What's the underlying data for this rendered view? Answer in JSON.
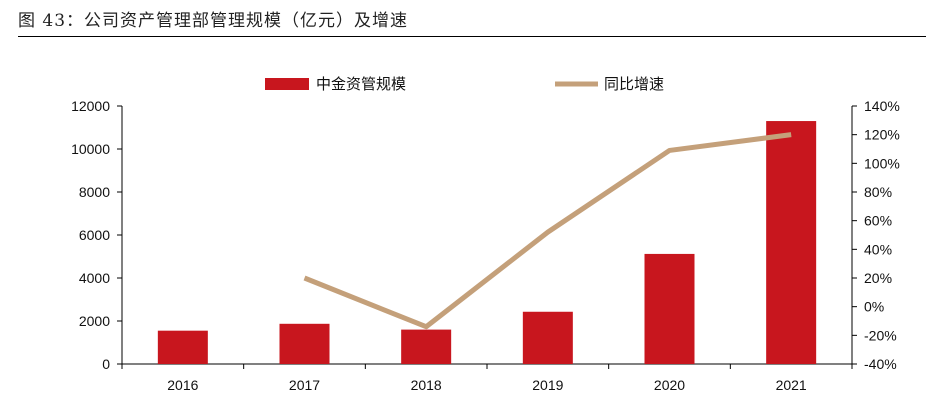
{
  "figure": {
    "title": "图 43：公司资产管理部管理规模（亿元）及增速"
  },
  "colors": {
    "bar": "#c8161e",
    "line": "#c4a07a",
    "axis": "#000000"
  },
  "chart_data": {
    "type": "bar",
    "categories": [
      "2016",
      "2017",
      "2018",
      "2019",
      "2020",
      "2021"
    ],
    "series": [
      {
        "name": "中金资管规模",
        "type": "bar",
        "axis": "left",
        "values": [
          1550,
          1870,
          1600,
          2430,
          5120,
          11300
        ]
      },
      {
        "name": "同比增速",
        "type": "line",
        "axis": "right",
        "values": [
          null,
          20,
          -14,
          52,
          109,
          120
        ]
      }
    ],
    "y_left": {
      "min": 0,
      "max": 12000,
      "step": 2000,
      "ticks": [
        "0",
        "2000",
        "4000",
        "6000",
        "8000",
        "10000",
        "12000"
      ]
    },
    "y_right": {
      "min": -40,
      "max": 140,
      "step": 20,
      "ticks": [
        "-40%",
        "-20%",
        "0%",
        "20%",
        "40%",
        "60%",
        "80%",
        "100%",
        "120%",
        "140%"
      ]
    },
    "legend": {
      "position": "top",
      "items": [
        {
          "label": "中金资管规模",
          "kind": "bar"
        },
        {
          "label": "同比增速",
          "kind": "line"
        }
      ]
    },
    "grid": false
  }
}
